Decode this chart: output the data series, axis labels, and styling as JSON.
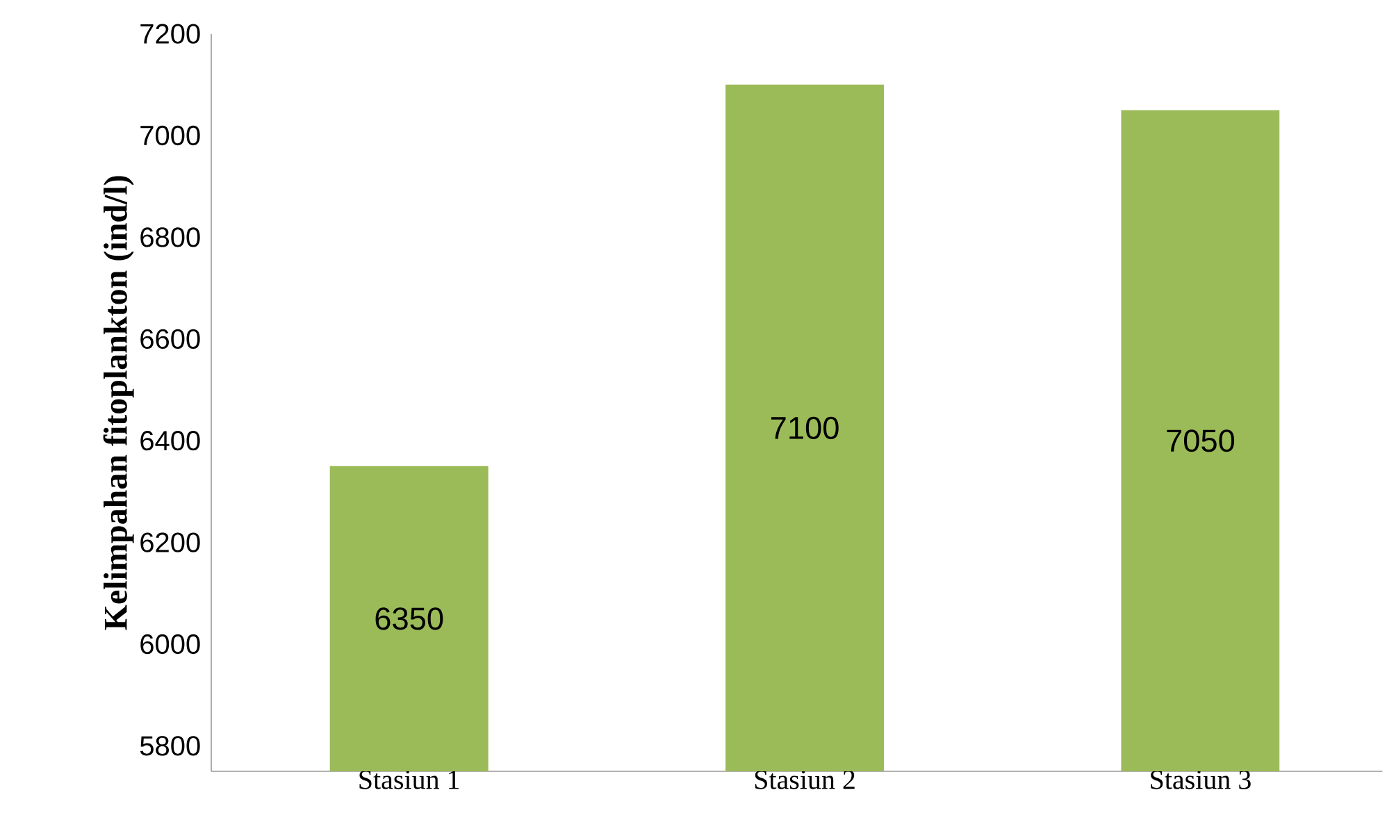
{
  "chart_data": {
    "type": "bar",
    "ylabel": "Kelimpahan fitoplankton (ind/l)",
    "categories": [
      "Stasiun 1",
      "Stasiun 2",
      "Stasiun 3"
    ],
    "values": [
      6350,
      7100,
      7050
    ],
    "color": "#9bbb59",
    "ylim": [
      5750,
      7200
    ],
    "yticks": [
      5800,
      6000,
      6200,
      6400,
      6600,
      6800,
      7000,
      7200
    ],
    "data_labels": true
  }
}
